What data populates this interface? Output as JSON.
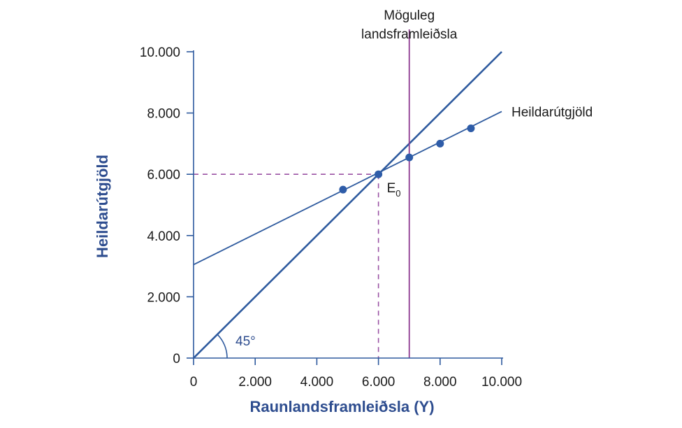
{
  "chart_data": {
    "type": "line",
    "xlabel": "Raunlandsframleiðsla (Y)",
    "ylabel": "Heildarútgjöld",
    "xlim": [
      0,
      10000
    ],
    "ylim": [
      0,
      10000
    ],
    "x_ticks": [
      0,
      2000,
      4000,
      6000,
      8000,
      10000
    ],
    "y_ticks": [
      0,
      2000,
      4000,
      6000,
      8000,
      10000
    ],
    "x_tick_labels": [
      "0",
      "2.000",
      "4.000",
      "6.000",
      "8.000",
      "10.000"
    ],
    "y_tick_labels": [
      "0",
      "2.000",
      "4.000",
      "6.000",
      "8.000",
      "10.000"
    ],
    "series": [
      {
        "name": "Heildarútgjöld",
        "line": [
          [
            0,
            3050
          ],
          [
            10000,
            8050
          ]
        ],
        "points": [
          [
            4850,
            5500
          ],
          [
            6000,
            6000
          ],
          [
            7000,
            6550
          ],
          [
            8000,
            7000
          ],
          [
            9000,
            7500
          ]
        ]
      }
    ],
    "reference_line_45": {
      "line": [
        [
          0,
          0
        ],
        [
          10000,
          10000
        ]
      ],
      "angle_label": "45°"
    },
    "potential_gdp": {
      "x": 7000,
      "label_line1": "Möguleg",
      "label_line2": "landsframleiðsla"
    },
    "equilibrium": {
      "x": 6000,
      "y": 6000,
      "label": "E",
      "subscript": "0"
    },
    "colors": {
      "line": "#2e5a9e",
      "points": "#2e5ca8",
      "potential": "#8e3b91",
      "dashed": "#9a52a3",
      "axis_title": "#2e4d8f"
    },
    "grid": false
  }
}
